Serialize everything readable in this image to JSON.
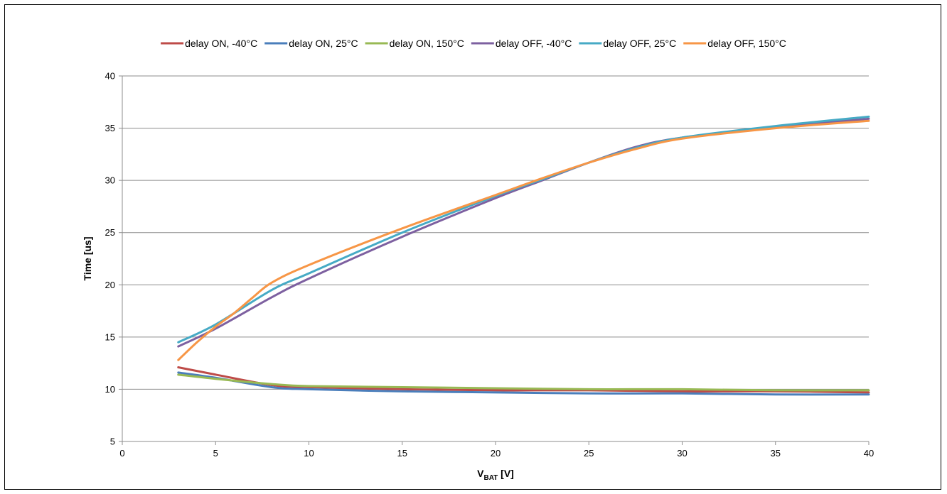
{
  "chart_data": {
    "type": "line",
    "title": "",
    "xlabel_main": "V",
    "xlabel_sub": "BAT",
    "xlabel_unit": " [V]",
    "ylabel": "Time [us]",
    "xlim": [
      0,
      40
    ],
    "ylim": [
      5,
      40
    ],
    "x_ticks": [
      "0",
      "5",
      "10",
      "15",
      "20",
      "25",
      "30",
      "35",
      "40"
    ],
    "y_ticks": [
      "5",
      "10",
      "15",
      "20",
      "25",
      "30",
      "35",
      "40"
    ],
    "grid": "horizontal",
    "legend_position": "top",
    "series": [
      {
        "name": "delay ON, -40°C",
        "color": "#be4b48",
        "x": [
          3,
          5,
          8,
          10,
          15,
          20,
          25,
          30,
          35,
          40
        ],
        "y": [
          12.1,
          11.4,
          10.4,
          10.2,
          10.0,
          9.9,
          9.9,
          9.8,
          9.8,
          9.7
        ]
      },
      {
        "name": "delay ON, 25°C",
        "color": "#4a7ebb",
        "x": [
          3,
          5,
          8,
          10,
          15,
          20,
          25,
          30,
          35,
          40
        ],
        "y": [
          11.6,
          11.1,
          10.2,
          10.0,
          9.8,
          9.7,
          9.6,
          9.6,
          9.5,
          9.5
        ]
      },
      {
        "name": "delay ON, 150°C",
        "color": "#98b954",
        "x": [
          3,
          5,
          8,
          10,
          15,
          20,
          25,
          30,
          35,
          40
        ],
        "y": [
          11.4,
          11.0,
          10.5,
          10.3,
          10.2,
          10.1,
          10.0,
          10.0,
          9.9,
          9.9
        ]
      },
      {
        "name": "delay OFF, -40°C",
        "color": "#7d60a0",
        "x": [
          3,
          5,
          8,
          10,
          15,
          20,
          22.5,
          25,
          27.5,
          30,
          35,
          40
        ],
        "y": [
          14.1,
          15.8,
          18.8,
          20.6,
          24.6,
          28.3,
          30.0,
          31.7,
          33.2,
          34.1,
          35.1,
          35.9
        ]
      },
      {
        "name": "delay OFF, 25°C",
        "color": "#46aac5",
        "x": [
          3,
          5,
          8,
          10,
          15,
          20,
          22.5,
          25,
          27.5,
          30,
          35,
          40
        ],
        "y": [
          14.5,
          16.2,
          19.5,
          21.1,
          25.0,
          28.5,
          30.1,
          31.7,
          33.1,
          34.1,
          35.2,
          36.1
        ]
      },
      {
        "name": "delay OFF, 150°C",
        "color": "#f79646",
        "x": [
          3,
          4,
          5,
          6,
          7,
          8,
          10,
          15,
          20,
          22.5,
          25,
          27.5,
          30,
          35,
          40
        ],
        "y": [
          12.8,
          14.5,
          16.0,
          17.3,
          18.8,
          20.2,
          21.9,
          25.4,
          28.6,
          30.2,
          31.7,
          33.0,
          34.0,
          35.0,
          35.7
        ]
      }
    ]
  }
}
